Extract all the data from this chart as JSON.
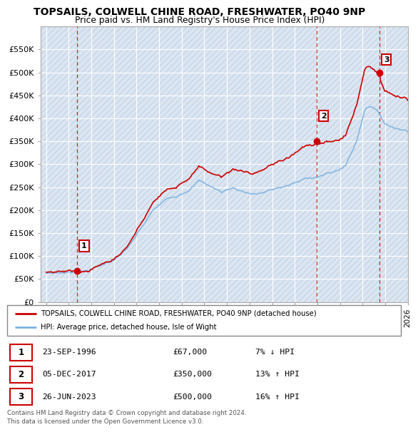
{
  "title1": "TOPSAILS, COLWELL CHINE ROAD, FRESHWATER, PO40 9NP",
  "title2": "Price paid vs. HM Land Registry's House Price Index (HPI)",
  "ylabel_vals": [
    0,
    50000,
    100000,
    150000,
    200000,
    250000,
    300000,
    350000,
    400000,
    450000,
    500000,
    550000
  ],
  "ylabel_labels": [
    "£0",
    "£50K",
    "£100K",
    "£150K",
    "£200K",
    "£250K",
    "£300K",
    "£350K",
    "£400K",
    "£450K",
    "£500K",
    "£550K"
  ],
  "xlim": [
    1993.5,
    2026.0
  ],
  "ylim": [
    0,
    600000
  ],
  "sale_years": [
    1996.72,
    2017.92,
    2023.48
  ],
  "sale_prices": [
    67000,
    350000,
    500000
  ],
  "sale_labels": [
    "1",
    "2",
    "3"
  ],
  "sale_dates": [
    "23-SEP-1996",
    "05-DEC-2017",
    "26-JUN-2023"
  ],
  "sale_price_strs": [
    "£67,000",
    "£350,000",
    "£500,000"
  ],
  "sale_hpi_strs": [
    "7% ↓ HPI",
    "13% ↑ HPI",
    "16% ↑ HPI"
  ],
  "property_color": "#cc0000",
  "hpi_color": "#7db3e0",
  "legend_property": "TOPSAILS, COLWELL CHINE ROAD, FRESHWATER, PO40 9NP (detached house)",
  "legend_hpi": "HPI: Average price, detached house, Isle of Wight",
  "footnote": "Contains HM Land Registry data © Crown copyright and database right 2024.\nThis data is licensed under the Open Government Licence v3.0.",
  "plot_bg_color": "#dce6f1",
  "grid_color": "#ffffff"
}
